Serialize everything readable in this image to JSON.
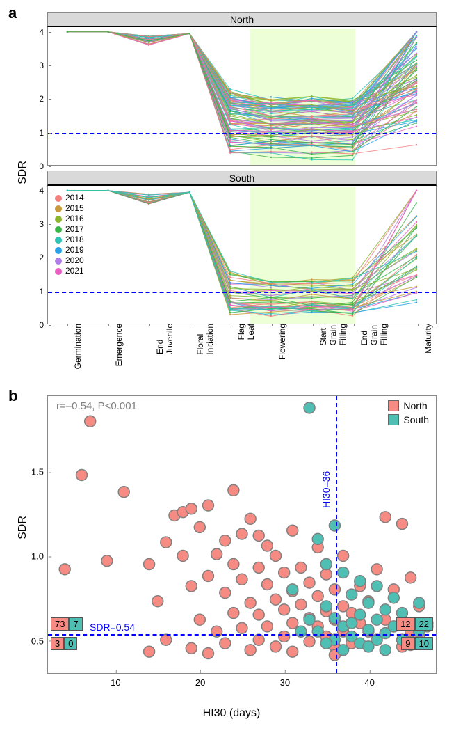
{
  "panels": {
    "a_label": "a",
    "b_label": "b"
  },
  "year_colors": {
    "2014": "#f27e7e",
    "2015": "#c89a3c",
    "2016": "#8db52e",
    "2017": "#39b54a",
    "2018": "#2ec4b6",
    "2019": "#2aa0e6",
    "2020": "#b07de8",
    "2021": "#e85fc1"
  },
  "panel_a": {
    "ylabel": "SDR",
    "ylim": [
      0,
      4.1
    ],
    "yticks": [
      0,
      1,
      2,
      3,
      4
    ],
    "x_categories": [
      "Germination",
      "Emergence",
      "End\nJuvenile",
      "Floral\nInitiation",
      "Flag\nLeaf",
      "Flowering",
      "Start\nGrain\nFilling",
      "End\nGrain\nFilling",
      "Maturity"
    ],
    "x_positions": [
      0.05,
      0.155,
      0.26,
      0.365,
      0.47,
      0.575,
      0.68,
      0.785,
      0.95
    ],
    "hline_y": 1.0,
    "shade_from": 0.52,
    "shade_to": 0.79,
    "facets": [
      {
        "title": "North",
        "n_series": 90,
        "ymin_spread": 0.3,
        "ymax_spread": 2.2
      },
      {
        "title": "South",
        "n_series": 44,
        "ymin_spread": 0.3,
        "ymax_spread": 1.5
      }
    ],
    "legend_title": null,
    "legend_years": [
      "2014",
      "2015",
      "2016",
      "2017",
      "2018",
      "2019",
      "2020",
      "2021"
    ]
  },
  "panel_b": {
    "xlabel": "HI30 (days)",
    "ylabel": "SDR",
    "xlim": [
      2,
      48
    ],
    "ylim": [
      0.3,
      1.95
    ],
    "xticks": [
      10,
      20,
      30,
      40
    ],
    "yticks": [
      0.5,
      1.0,
      1.5
    ],
    "hline_y": 0.54,
    "vline_x": 36,
    "corr_text": "r=–0.54, P<0.001",
    "hline_label": "SDR=0.54",
    "vline_label": "HI30=36",
    "legend": [
      {
        "label": "North",
        "color": "#f58b82"
      },
      {
        "label": "South",
        "color": "#4fbfb3"
      }
    ],
    "point_stroke": "#808080",
    "point_radius": 8,
    "counts_left": {
      "top": [
        "73",
        "7"
      ],
      "bottom": [
        "3",
        "0"
      ],
      "colors": [
        "#f58b82",
        "#4fbfb3"
      ]
    },
    "counts_right": {
      "top": [
        "12",
        "22"
      ],
      "bottom": [
        "9",
        "10"
      ],
      "colors": [
        "#f58b82",
        "#4fbfb3"
      ]
    },
    "points_north": [
      [
        4,
        0.92
      ],
      [
        6,
        1.48
      ],
      [
        7,
        1.8
      ],
      [
        9,
        0.97
      ],
      [
        11,
        1.38
      ],
      [
        14,
        0.95
      ],
      [
        15,
        0.73
      ],
      [
        16,
        1.08
      ],
      [
        17,
        1.24
      ],
      [
        18,
        1.26
      ],
      [
        18,
        1.0
      ],
      [
        19,
        1.28
      ],
      [
        19,
        0.82
      ],
      [
        20,
        1.17
      ],
      [
        20,
        0.62
      ],
      [
        21,
        1.3
      ],
      [
        21,
        0.88
      ],
      [
        22,
        0.55
      ],
      [
        22,
        1.01
      ],
      [
        23,
        1.09
      ],
      [
        23,
        0.78
      ],
      [
        23,
        0.48
      ],
      [
        24,
        1.39
      ],
      [
        24,
        0.95
      ],
      [
        24,
        0.66
      ],
      [
        25,
        1.13
      ],
      [
        25,
        0.86
      ],
      [
        25,
        0.57
      ],
      [
        26,
        1.22
      ],
      [
        26,
        0.72
      ],
      [
        27,
        1.12
      ],
      [
        27,
        0.93
      ],
      [
        27,
        0.65
      ],
      [
        27,
        0.5
      ],
      [
        28,
        1.06
      ],
      [
        28,
        0.83
      ],
      [
        28,
        0.58
      ],
      [
        29,
        0.74
      ],
      [
        29,
        1.0
      ],
      [
        29,
        0.46
      ],
      [
        30,
        0.9
      ],
      [
        30,
        0.68
      ],
      [
        30,
        0.52
      ],
      [
        31,
        1.15
      ],
      [
        31,
        0.79
      ],
      [
        31,
        0.6
      ],
      [
        32,
        0.55
      ],
      [
        32,
        0.93
      ],
      [
        32,
        0.71
      ],
      [
        33,
        0.84
      ],
      [
        33,
        0.49
      ],
      [
        33,
        0.63
      ],
      [
        34,
        0.58
      ],
      [
        34,
        1.05
      ],
      [
        34,
        0.76
      ],
      [
        35,
        0.52
      ],
      [
        35,
        0.67
      ],
      [
        35,
        0.89
      ],
      [
        36,
        0.46
      ],
      [
        36,
        0.62
      ],
      [
        36,
        0.8
      ],
      [
        37,
        0.55
      ],
      [
        37,
        0.7
      ],
      [
        37,
        1.0
      ],
      [
        38,
        0.48
      ],
      [
        38,
        0.66
      ],
      [
        39,
        0.6
      ],
      [
        39,
        0.82
      ],
      [
        40,
        0.55
      ],
      [
        40,
        0.73
      ],
      [
        41,
        0.5
      ],
      [
        41,
        0.92
      ],
      [
        42,
        1.23
      ],
      [
        42,
        0.62
      ],
      [
        43,
        0.58
      ],
      [
        43,
        0.8
      ],
      [
        44,
        0.46
      ],
      [
        44,
        1.19
      ],
      [
        45,
        0.87
      ],
      [
        45,
        0.55
      ],
      [
        46,
        0.7
      ],
      [
        46,
        0.52
      ],
      [
        47,
        0.6
      ],
      [
        14,
        0.43
      ],
      [
        16,
        0.5
      ],
      [
        19,
        0.45
      ],
      [
        21,
        0.42
      ],
      [
        26,
        0.44
      ],
      [
        36,
        0.41
      ],
      [
        31,
        0.43
      ]
    ],
    "points_south": [
      [
        33,
        1.88
      ],
      [
        34,
        1.1
      ],
      [
        35,
        0.95
      ],
      [
        35,
        0.7
      ],
      [
        36,
        1.18
      ],
      [
        36,
        0.63
      ],
      [
        36,
        0.5
      ],
      [
        37,
        0.9
      ],
      [
        37,
        0.58
      ],
      [
        37,
        0.44
      ],
      [
        38,
        0.77
      ],
      [
        38,
        0.6
      ],
      [
        38,
        0.52
      ],
      [
        39,
        0.85
      ],
      [
        39,
        0.65
      ],
      [
        39,
        0.48
      ],
      [
        40,
        0.72
      ],
      [
        40,
        0.56
      ],
      [
        40,
        0.46
      ],
      [
        41,
        0.82
      ],
      [
        41,
        0.62
      ],
      [
        41,
        0.5
      ],
      [
        42,
        0.68
      ],
      [
        42,
        0.54
      ],
      [
        42,
        0.44
      ],
      [
        43,
        0.75
      ],
      [
        43,
        0.58
      ],
      [
        44,
        0.66
      ],
      [
        44,
        0.5
      ],
      [
        45,
        0.6
      ],
      [
        45,
        0.47
      ],
      [
        46,
        0.72
      ],
      [
        46,
        0.55
      ],
      [
        47,
        0.58
      ],
      [
        34,
        0.55
      ],
      [
        35,
        0.48
      ],
      [
        33,
        0.62
      ],
      [
        32,
        0.55
      ],
      [
        31,
        0.8
      ]
    ]
  }
}
